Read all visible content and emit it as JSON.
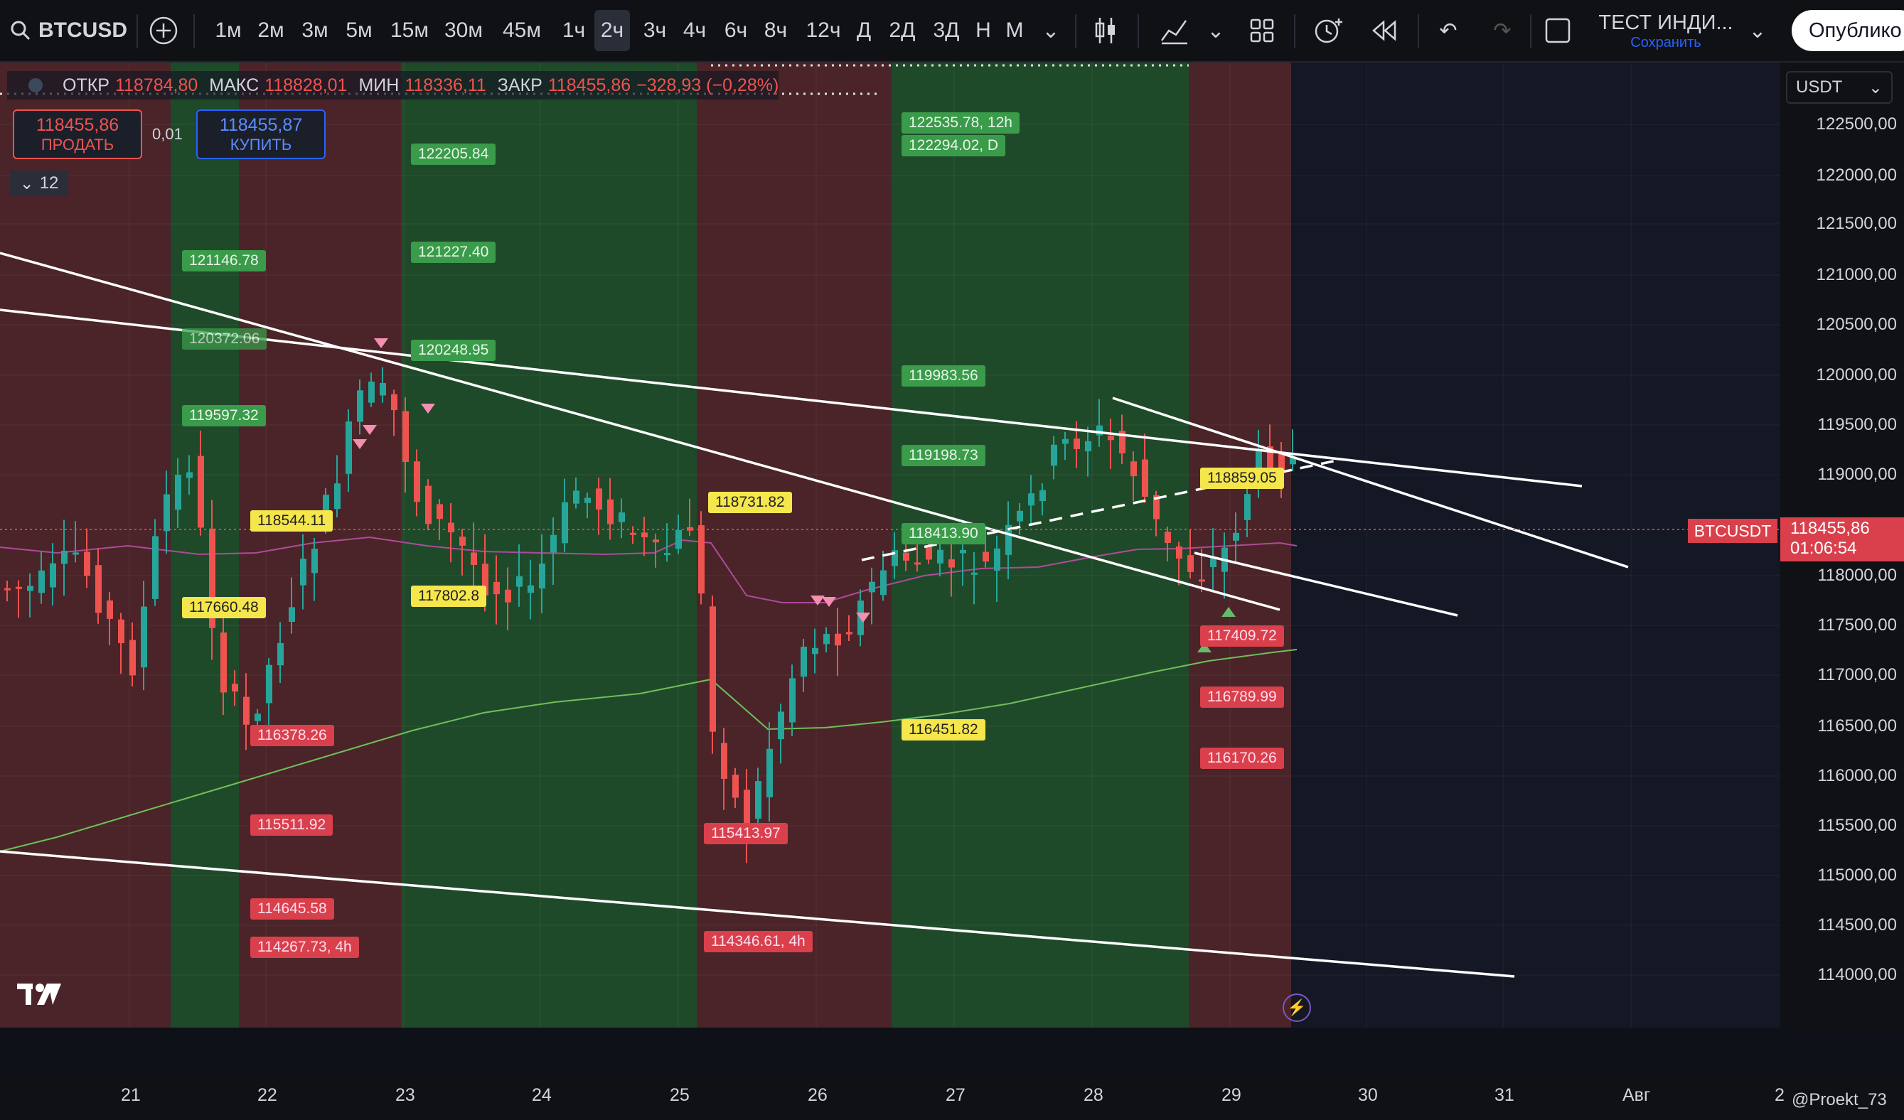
{
  "toolbar": {
    "symbol": "BTCUSD",
    "intervals": [
      "1м",
      "2м",
      "3м",
      "5м",
      "15м",
      "30м",
      "45м",
      "1ч",
      "2ч",
      "3ч",
      "4ч",
      "6ч",
      "8ч",
      "12ч",
      "Д",
      "2Д",
      "3Д",
      "Н",
      "М"
    ],
    "active_interval": "2ч",
    "layout_name": "ТЕСТ ИНДИ...",
    "save_label": "Сохранить",
    "publish_label": "Опублико"
  },
  "ohlc": {
    "open_label": "ОТКР",
    "open": "118784,80",
    "high_label": "МАКС",
    "high": "118828,01",
    "low_label": "МИН",
    "low": "118336,11",
    "close_label": "ЗАКР",
    "close": "118455,86",
    "change": "−328,93 (−0,28%)"
  },
  "trade": {
    "sell_price": "118455,86",
    "sell_label": "ПРОДАТЬ",
    "spread": "0,01",
    "buy_price": "118455,87",
    "buy_label": "КУПИТЬ",
    "indicators_count": "12"
  },
  "currency": "USDT",
  "price_axis": [
    "122500,00",
    "122000,00",
    "121500,00",
    "121000,00",
    "120500,00",
    "120000,00",
    "119500,00",
    "119000,00",
    "118000,00",
    "117500,00",
    "117000,00",
    "116500,00",
    "116000,00",
    "115500,00",
    "115000,00",
    "114500,00",
    "114000,00"
  ],
  "current_price": {
    "symbol": "BTCUSDT",
    "price": "118455,86",
    "countdown": "01:06:54"
  },
  "time_axis": [
    "21",
    "22",
    "23",
    "24",
    "25",
    "26",
    "27",
    "28",
    "29",
    "30",
    "31",
    "Авг",
    "2"
  ],
  "labels": {
    "green": [
      "121146.78",
      "120372.06",
      "119597.32",
      "122205.84",
      "121227.40",
      "120248.95",
      "122535.78, 12h",
      "122294.02, D",
      "119983.56",
      "119198.73",
      "118413.90"
    ],
    "yellow": [
      "118544.11",
      "117660.48",
      "117802.8",
      "118731.82",
      "116451.82",
      "118859.05"
    ],
    "red": [
      "116378.26",
      "115511.92",
      "114645.58",
      "114267.73, 4h",
      "115413.97",
      "114346.61, 4h",
      "117409.72",
      "116789.99",
      "116170.26"
    ]
  },
  "watermark": "@Proekt_73",
  "colors": {
    "green_zone": "#1f4a2a",
    "red_zone": "#4a2428",
    "up": "#26a69a",
    "down": "#ef5350",
    "accent": "#2962ff"
  }
}
